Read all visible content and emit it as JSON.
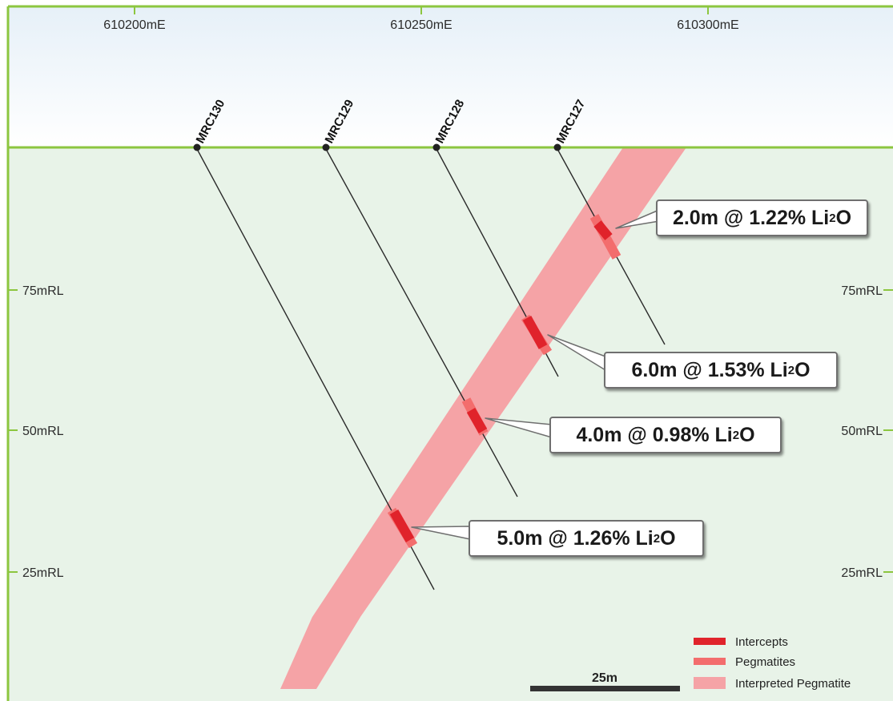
{
  "easting_labels": [
    "610200mE",
    "610250mE",
    "610300mE"
  ],
  "rl_labels": [
    "75mRL",
    "50mRL",
    "25mRL"
  ],
  "drillholes": [
    {
      "id": "MRC130"
    },
    {
      "id": "MRC129"
    },
    {
      "id": "MRC128"
    },
    {
      "id": "MRC127"
    }
  ],
  "intercepts": [
    {
      "hole": "MRC127",
      "main": "2.0m @ 1.22% Li",
      "sub": "2",
      "tail": "O"
    },
    {
      "hole": "MRC128",
      "main": "6.0m @ 1.53% Li",
      "sub": "2",
      "tail": "O"
    },
    {
      "hole": "MRC129",
      "main": "4.0m @ 0.98% Li",
      "sub": "2",
      "tail": "O"
    },
    {
      "hole": "MRC130",
      "main": "5.0m @ 1.26% Li",
      "sub": "2",
      "tail": "O"
    }
  ],
  "legend": [
    {
      "label": "Intercepts",
      "color": "#e0232b"
    },
    {
      "label": "Pegmatites",
      "color": "#f36d6d"
    },
    {
      "label": "Interpreted Pegmatite",
      "color": "#f5a3a6"
    }
  ],
  "scale_bar": {
    "label": "25m"
  },
  "colors": {
    "sky": "#eef5fa",
    "ground": "#e8f3e8",
    "frame": "#8cc63f",
    "pegmatite_band": "#f5a3a6",
    "drill_trace": "#2a2a2a"
  }
}
